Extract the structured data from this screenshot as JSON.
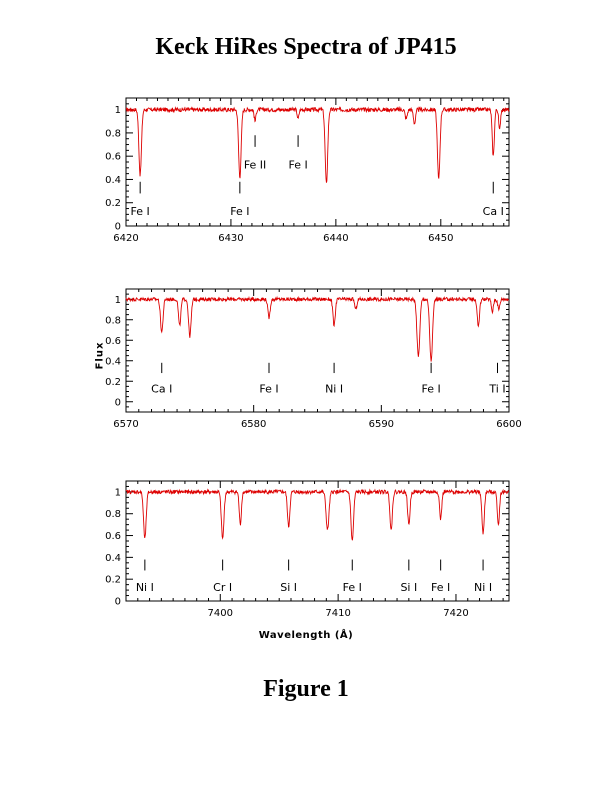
{
  "title": "Keck HiRes Spectra of JP415",
  "caption": "Figure 1",
  "chart_data": [
    {
      "type": "line",
      "ylabel": "",
      "xlabel": "",
      "xlim": [
        6420,
        6456.5
      ],
      "ylim": [
        0,
        1.1
      ],
      "xticks": [
        6420,
        6430,
        6440,
        6450
      ],
      "yticks": [
        0,
        0.2,
        0.4,
        0.6,
        0.8,
        1
      ],
      "line_color": "#dd0000",
      "absorptions": [
        {
          "center": 6421.35,
          "depth": 0.56,
          "width": 0.12
        },
        {
          "center": 6430.85,
          "depth": 0.58,
          "width": 0.12
        },
        {
          "center": 6432.3,
          "depth": 0.1,
          "width": 0.08
        },
        {
          "center": 6436.4,
          "depth": 0.08,
          "width": 0.08
        },
        {
          "center": 6439.1,
          "depth": 0.64,
          "width": 0.12
        },
        {
          "center": 6449.8,
          "depth": 0.6,
          "width": 0.12
        },
        {
          "center": 6455.0,
          "depth": 0.4,
          "width": 0.1
        },
        {
          "center": 6455.6,
          "depth": 0.18,
          "width": 0.08
        },
        {
          "center": 6446.7,
          "depth": 0.08,
          "width": 0.1
        },
        {
          "center": 6447.5,
          "depth": 0.12,
          "width": 0.1
        }
      ],
      "annotations": [
        {
          "label": "Fe I",
          "x": 6421.35,
          "row": "low"
        },
        {
          "label": "Fe I",
          "x": 6430.85,
          "row": "low"
        },
        {
          "label": "Fe II",
          "x": 6432.3,
          "row": "high"
        },
        {
          "label": "Fe I",
          "x": 6436.4,
          "row": "high"
        },
        {
          "label": "Ca I",
          "x": 6455.0,
          "row": "low"
        }
      ]
    },
    {
      "type": "line",
      "ylabel": "Flux",
      "xlabel": "",
      "xlim": [
        6570,
        6600
      ],
      "ylim": [
        -0.1,
        1.1
      ],
      "xticks": [
        6570,
        6580,
        6590,
        6600
      ],
      "yticks": [
        0,
        0.2,
        0.4,
        0.6,
        0.8,
        1
      ],
      "line_color": "#dd0000",
      "absorptions": [
        {
          "center": 6572.8,
          "depth": 0.32,
          "width": 0.1
        },
        {
          "center": 6574.2,
          "depth": 0.26,
          "width": 0.09
        },
        {
          "center": 6575.0,
          "depth": 0.36,
          "width": 0.1
        },
        {
          "center": 6581.2,
          "depth": 0.18,
          "width": 0.09
        },
        {
          "center": 6586.3,
          "depth": 0.26,
          "width": 0.09
        },
        {
          "center": 6588.0,
          "depth": 0.1,
          "width": 0.08
        },
        {
          "center": 6592.9,
          "depth": 0.56,
          "width": 0.11
        },
        {
          "center": 6593.9,
          "depth": 0.6,
          "width": 0.11
        },
        {
          "center": 6597.6,
          "depth": 0.26,
          "width": 0.09
        },
        {
          "center": 6598.7,
          "depth": 0.12,
          "width": 0.08
        },
        {
          "center": 6599.2,
          "depth": 0.1,
          "width": 0.08
        }
      ],
      "annotations": [
        {
          "label": "Ca I",
          "x": 6572.8,
          "row": "low"
        },
        {
          "label": "Fe I",
          "x": 6581.2,
          "row": "low"
        },
        {
          "label": "Ni I",
          "x": 6586.3,
          "row": "low"
        },
        {
          "label": "Fe I",
          "x": 6593.9,
          "row": "low"
        },
        {
          "label": "Ti I",
          "x": 6599.1,
          "row": "low"
        }
      ]
    },
    {
      "type": "line",
      "ylabel": "",
      "xlabel": "Wavelength (Å)",
      "xlim": [
        7392,
        7424.5
      ],
      "ylim": [
        0,
        1.1
      ],
      "xticks": [
        7400,
        7410,
        7420
      ],
      "yticks": [
        0,
        0.2,
        0.4,
        0.6,
        0.8,
        1
      ],
      "line_color": "#dd0000",
      "absorptions": [
        {
          "center": 7393.6,
          "depth": 0.43,
          "width": 0.11
        },
        {
          "center": 7400.2,
          "depth": 0.43,
          "width": 0.11
        },
        {
          "center": 7401.7,
          "depth": 0.3,
          "width": 0.09
        },
        {
          "center": 7405.8,
          "depth": 0.32,
          "width": 0.1
        },
        {
          "center": 7409.1,
          "depth": 0.35,
          "width": 0.12
        },
        {
          "center": 7411.2,
          "depth": 0.45,
          "width": 0.11
        },
        {
          "center": 7414.5,
          "depth": 0.35,
          "width": 0.1
        },
        {
          "center": 7416.0,
          "depth": 0.3,
          "width": 0.1
        },
        {
          "center": 7418.7,
          "depth": 0.25,
          "width": 0.09
        },
        {
          "center": 7422.3,
          "depth": 0.38,
          "width": 0.1
        },
        {
          "center": 7423.6,
          "depth": 0.3,
          "width": 0.09
        }
      ],
      "annotations": [
        {
          "label": "Ni I",
          "x": 7393.6,
          "row": "low"
        },
        {
          "label": "Cr I",
          "x": 7400.2,
          "row": "low"
        },
        {
          "label": "Si I",
          "x": 7405.8,
          "row": "low"
        },
        {
          "label": "Fe I",
          "x": 7411.2,
          "row": "low"
        },
        {
          "label": "Si I",
          "x": 7416.0,
          "row": "low"
        },
        {
          "label": "Fe I",
          "x": 7418.7,
          "row": "low"
        },
        {
          "label": "Ni I",
          "x": 7422.3,
          "row": "low"
        }
      ]
    }
  ]
}
